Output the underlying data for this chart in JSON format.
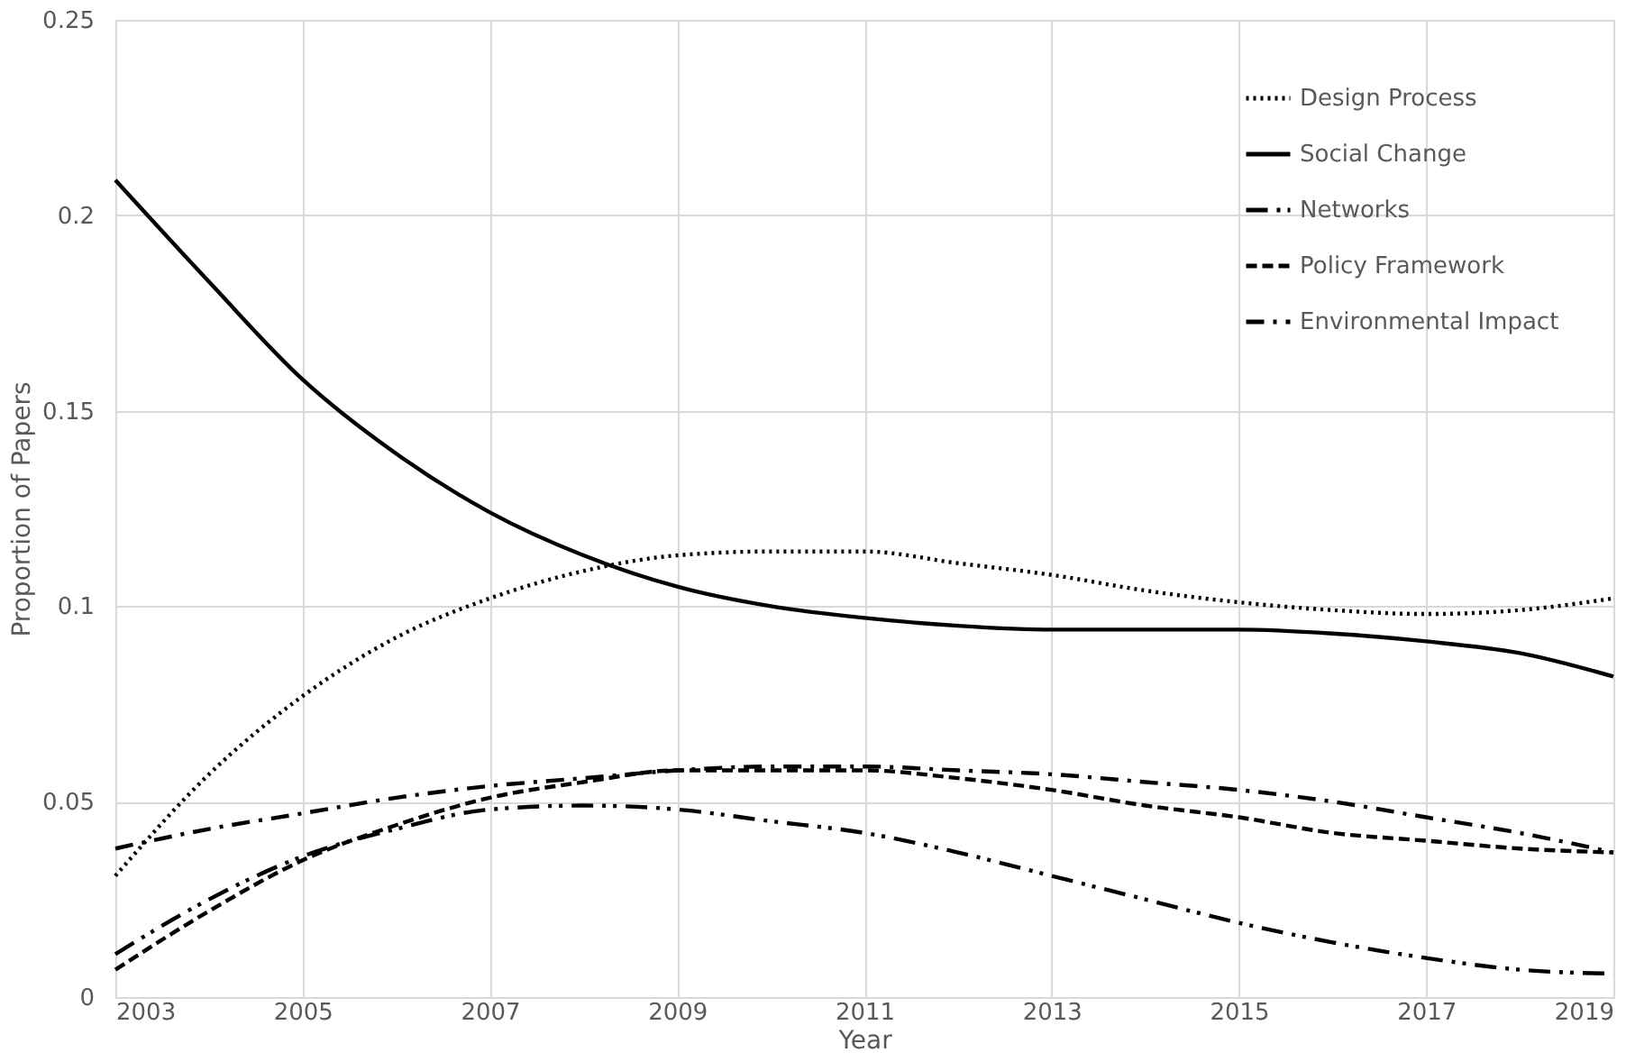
{
  "chart_data": {
    "type": "line",
    "xlabel": "Year",
    "ylabel": "Proportion of Papers",
    "x": [
      2003,
      2004,
      2005,
      2006,
      2007,
      2008,
      2009,
      2010,
      2011,
      2012,
      2013,
      2014,
      2015,
      2016,
      2017,
      2018,
      2019
    ],
    "xlim": [
      2003,
      2019
    ],
    "xticks": [
      2003,
      2005,
      2007,
      2009,
      2011,
      2013,
      2015,
      2017,
      2019
    ],
    "ylim": [
      0,
      0.25
    ],
    "yticks": [
      0,
      0.05,
      0.1,
      0.15,
      0.2,
      0.25
    ],
    "grid": true,
    "legend": "top right",
    "marker": "none",
    "series": [
      {
        "name": "Design Process",
        "color": "#000000",
        "line_style": "dotted",
        "values": [
          0.031,
          0.057,
          0.077,
          0.092,
          0.102,
          0.109,
          0.113,
          0.114,
          0.114,
          0.111,
          0.108,
          0.104,
          0.101,
          0.099,
          0.098,
          0.099,
          0.102
        ]
      },
      {
        "name": "Social Change",
        "color": "#000000",
        "line_style": "solid",
        "values": [
          0.209,
          0.183,
          0.158,
          0.139,
          0.124,
          0.113,
          0.105,
          0.1,
          0.097,
          0.095,
          0.094,
          0.094,
          0.094,
          0.093,
          0.091,
          0.088,
          0.082
        ]
      },
      {
        "name": "Networks",
        "color": "#000000",
        "line_style": "dashdotdot",
        "values": [
          0.011,
          0.025,
          0.036,
          0.043,
          0.048,
          0.049,
          0.048,
          0.045,
          0.042,
          0.037,
          0.031,
          0.025,
          0.019,
          0.014,
          0.01,
          0.007,
          0.006
        ]
      },
      {
        "name": "Policy Framework",
        "color": "#000000",
        "line_style": "dashed",
        "values": [
          0.007,
          0.022,
          0.035,
          0.044,
          0.051,
          0.055,
          0.058,
          0.058,
          0.058,
          0.056,
          0.053,
          0.049,
          0.046,
          0.042,
          0.04,
          0.038,
          0.037
        ]
      },
      {
        "name": "Environmental Impact",
        "color": "#000000",
        "line_style": "dashdot",
        "values": [
          0.038,
          0.043,
          0.047,
          0.051,
          0.054,
          0.056,
          0.058,
          0.059,
          0.059,
          0.058,
          0.057,
          0.055,
          0.053,
          0.05,
          0.046,
          0.042,
          0.037
        ]
      }
    ]
  }
}
